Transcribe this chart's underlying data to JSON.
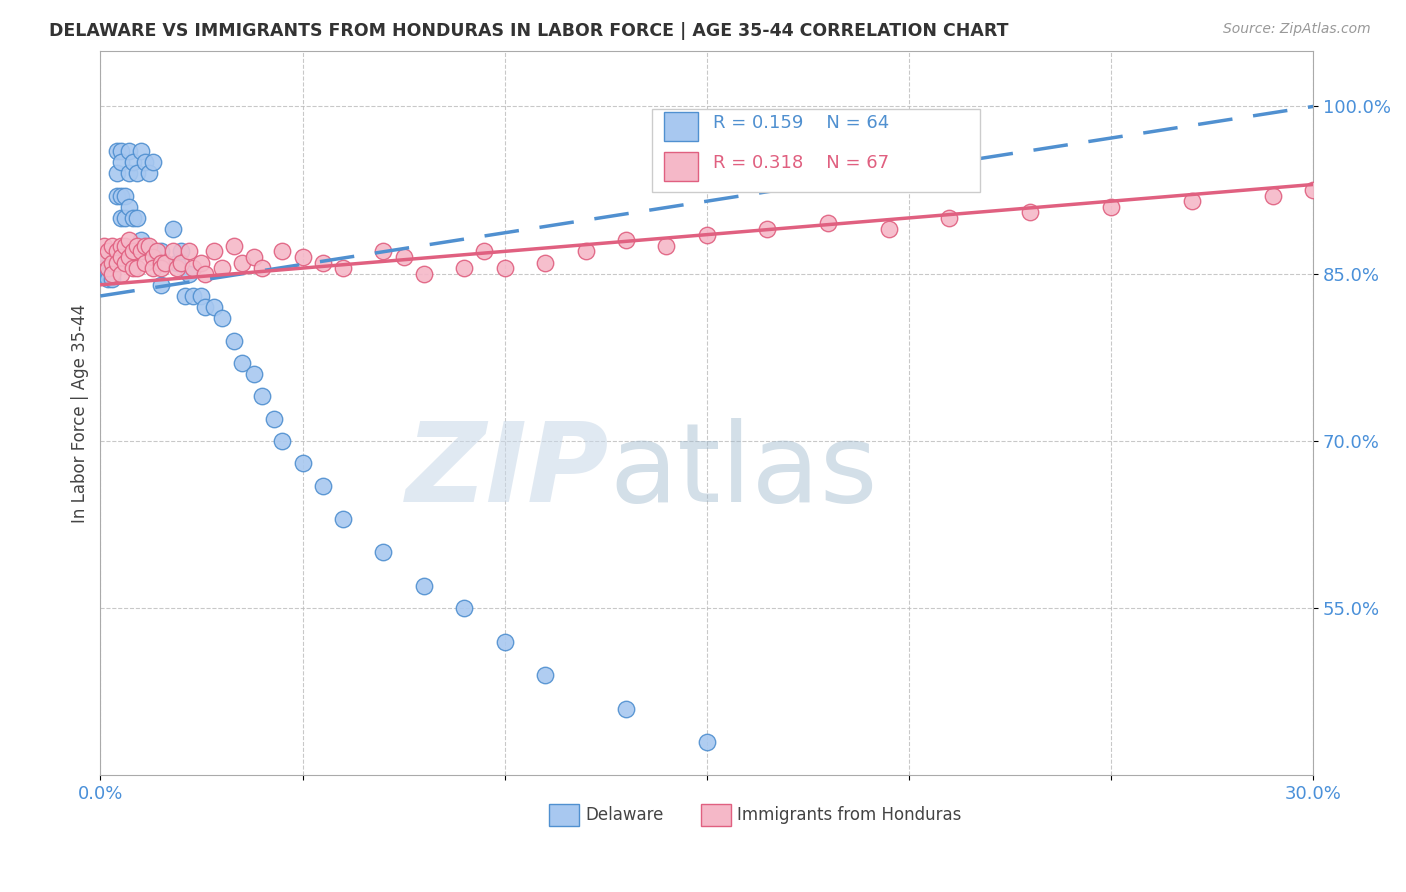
{
  "title": "DELAWARE VS IMMIGRANTS FROM HONDURAS IN LABOR FORCE | AGE 35-44 CORRELATION CHART",
  "source": "Source: ZipAtlas.com",
  "ylabel": "In Labor Force | Age 35-44",
  "xmin": 0.0,
  "xmax": 0.3,
  "ymin": 0.4,
  "ymax": 1.05,
  "yticks": [
    0.55,
    0.7,
    0.85,
    1.0
  ],
  "ytick_labels": [
    "55.0%",
    "70.0%",
    "85.0%",
    "100.0%"
  ],
  "xticks": [
    0.0,
    0.05,
    0.1,
    0.15,
    0.2,
    0.25,
    0.3
  ],
  "xtick_labels": [
    "0.0%",
    "",
    "",
    "",
    "",
    "",
    "30.0%"
  ],
  "blue_color": "#A8C8F0",
  "pink_color": "#F5B8C8",
  "trend_blue": "#5090D0",
  "trend_pink": "#E06080",
  "axis_color": "#4A90D9",
  "grid_color": "#BBBBBB",
  "delaware_x": [
    0.001,
    0.001,
    0.001,
    0.002,
    0.002,
    0.002,
    0.003,
    0.003,
    0.003,
    0.003,
    0.004,
    0.004,
    0.004,
    0.004,
    0.005,
    0.005,
    0.005,
    0.005,
    0.006,
    0.006,
    0.006,
    0.007,
    0.007,
    0.007,
    0.008,
    0.008,
    0.009,
    0.009,
    0.01,
    0.01,
    0.011,
    0.011,
    0.012,
    0.013,
    0.013,
    0.015,
    0.015,
    0.018,
    0.019,
    0.02,
    0.021,
    0.022,
    0.023,
    0.025,
    0.026,
    0.028,
    0.03,
    0.033,
    0.035,
    0.038,
    0.04,
    0.043,
    0.045,
    0.05,
    0.055,
    0.06,
    0.07,
    0.08,
    0.09,
    0.1,
    0.11,
    0.13,
    0.15
  ],
  "delaware_y": [
    0.86,
    0.855,
    0.85,
    0.855,
    0.85,
    0.845,
    0.86,
    0.855,
    0.85,
    0.845,
    0.96,
    0.94,
    0.92,
    0.86,
    0.96,
    0.95,
    0.92,
    0.9,
    0.92,
    0.9,
    0.87,
    0.96,
    0.94,
    0.91,
    0.95,
    0.9,
    0.94,
    0.9,
    0.96,
    0.88,
    0.95,
    0.87,
    0.94,
    0.95,
    0.87,
    0.87,
    0.84,
    0.89,
    0.86,
    0.87,
    0.83,
    0.85,
    0.83,
    0.83,
    0.82,
    0.82,
    0.81,
    0.79,
    0.77,
    0.76,
    0.74,
    0.72,
    0.7,
    0.68,
    0.66,
    0.63,
    0.6,
    0.57,
    0.55,
    0.52,
    0.49,
    0.46,
    0.43
  ],
  "honduras_x": [
    0.001,
    0.001,
    0.002,
    0.002,
    0.003,
    0.003,
    0.003,
    0.004,
    0.004,
    0.005,
    0.005,
    0.005,
    0.006,
    0.006,
    0.007,
    0.007,
    0.008,
    0.008,
    0.009,
    0.009,
    0.01,
    0.011,
    0.011,
    0.012,
    0.013,
    0.013,
    0.014,
    0.015,
    0.015,
    0.016,
    0.018,
    0.019,
    0.02,
    0.022,
    0.023,
    0.025,
    0.026,
    0.028,
    0.03,
    0.033,
    0.035,
    0.038,
    0.04,
    0.045,
    0.05,
    0.055,
    0.06,
    0.07,
    0.075,
    0.08,
    0.09,
    0.095,
    0.1,
    0.11,
    0.12,
    0.13,
    0.14,
    0.15,
    0.165,
    0.18,
    0.195,
    0.21,
    0.23,
    0.25,
    0.27,
    0.29,
    0.3
  ],
  "honduras_y": [
    0.875,
    0.865,
    0.87,
    0.855,
    0.875,
    0.86,
    0.85,
    0.87,
    0.86,
    0.875,
    0.865,
    0.85,
    0.875,
    0.86,
    0.88,
    0.865,
    0.87,
    0.855,
    0.875,
    0.855,
    0.87,
    0.875,
    0.86,
    0.875,
    0.865,
    0.855,
    0.87,
    0.86,
    0.855,
    0.86,
    0.87,
    0.855,
    0.86,
    0.87,
    0.855,
    0.86,
    0.85,
    0.87,
    0.855,
    0.875,
    0.86,
    0.865,
    0.855,
    0.87,
    0.865,
    0.86,
    0.855,
    0.87,
    0.865,
    0.85,
    0.855,
    0.87,
    0.855,
    0.86,
    0.87,
    0.88,
    0.875,
    0.885,
    0.89,
    0.895,
    0.89,
    0.9,
    0.905,
    0.91,
    0.915,
    0.92,
    0.925
  ]
}
